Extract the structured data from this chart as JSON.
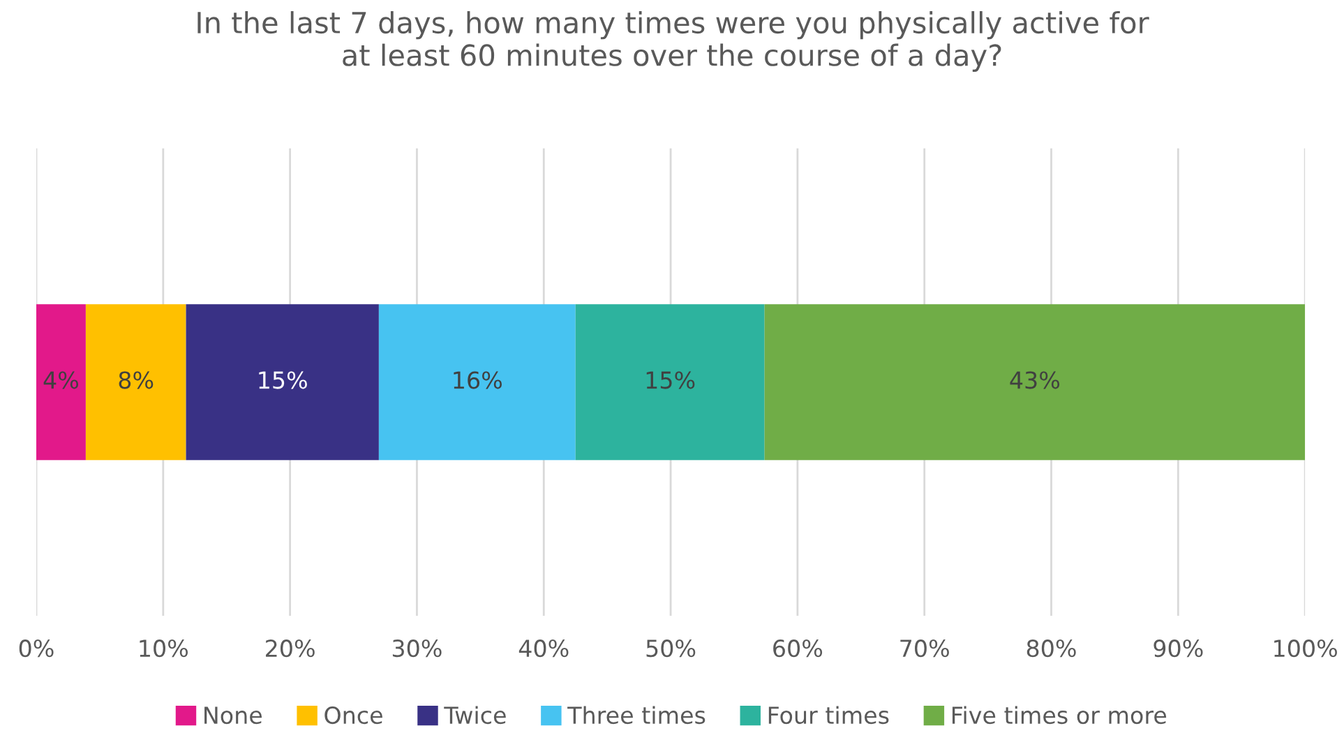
{
  "chart_data": {
    "type": "bar",
    "orientation": "horizontal",
    "stacked": true,
    "title": "In the last 7 days, how many times were you physically active for\nat least 60 minutes over the course of a day?",
    "categories": [
      null
    ],
    "series": [
      {
        "name": "None",
        "color": "#e2198a",
        "values": [
          3.9
        ],
        "value_labels": [
          "4%"
        ]
      },
      {
        "name": "Once",
        "color": "#ffc000",
        "values": [
          7.9
        ],
        "value_labels": [
          "8%"
        ]
      },
      {
        "name": "Twice",
        "color": "#393185",
        "values": [
          15.2
        ],
        "value_labels": [
          "15%"
        ]
      },
      {
        "name": "Three times",
        "color": "#47c3f1",
        "values": [
          15.5
        ],
        "value_labels": [
          "16%"
        ]
      },
      {
        "name": "Four times",
        "color": "#2db39e",
        "values": [
          14.9
        ],
        "value_labels": [
          "15%"
        ]
      },
      {
        "name": "Five times or more",
        "color": "#70ad47",
        "values": [
          42.6
        ],
        "value_labels": [
          "43%"
        ]
      }
    ],
    "xlim": [
      0,
      100
    ],
    "xticks": [
      {
        "value": 0,
        "label": "0%"
      },
      {
        "value": 10,
        "label": "10%"
      },
      {
        "value": 20,
        "label": "20%"
      },
      {
        "value": 30,
        "label": "30%"
      },
      {
        "value": 40,
        "label": "40%"
      },
      {
        "value": 50,
        "label": "50%"
      },
      {
        "value": 60,
        "label": "60%"
      },
      {
        "value": 70,
        "label": "70%"
      },
      {
        "value": 80,
        "label": "80%"
      },
      {
        "value": 90,
        "label": "90%"
      },
      {
        "value": 100,
        "label": "100%"
      }
    ],
    "grid": "x",
    "legend": "bottom"
  }
}
